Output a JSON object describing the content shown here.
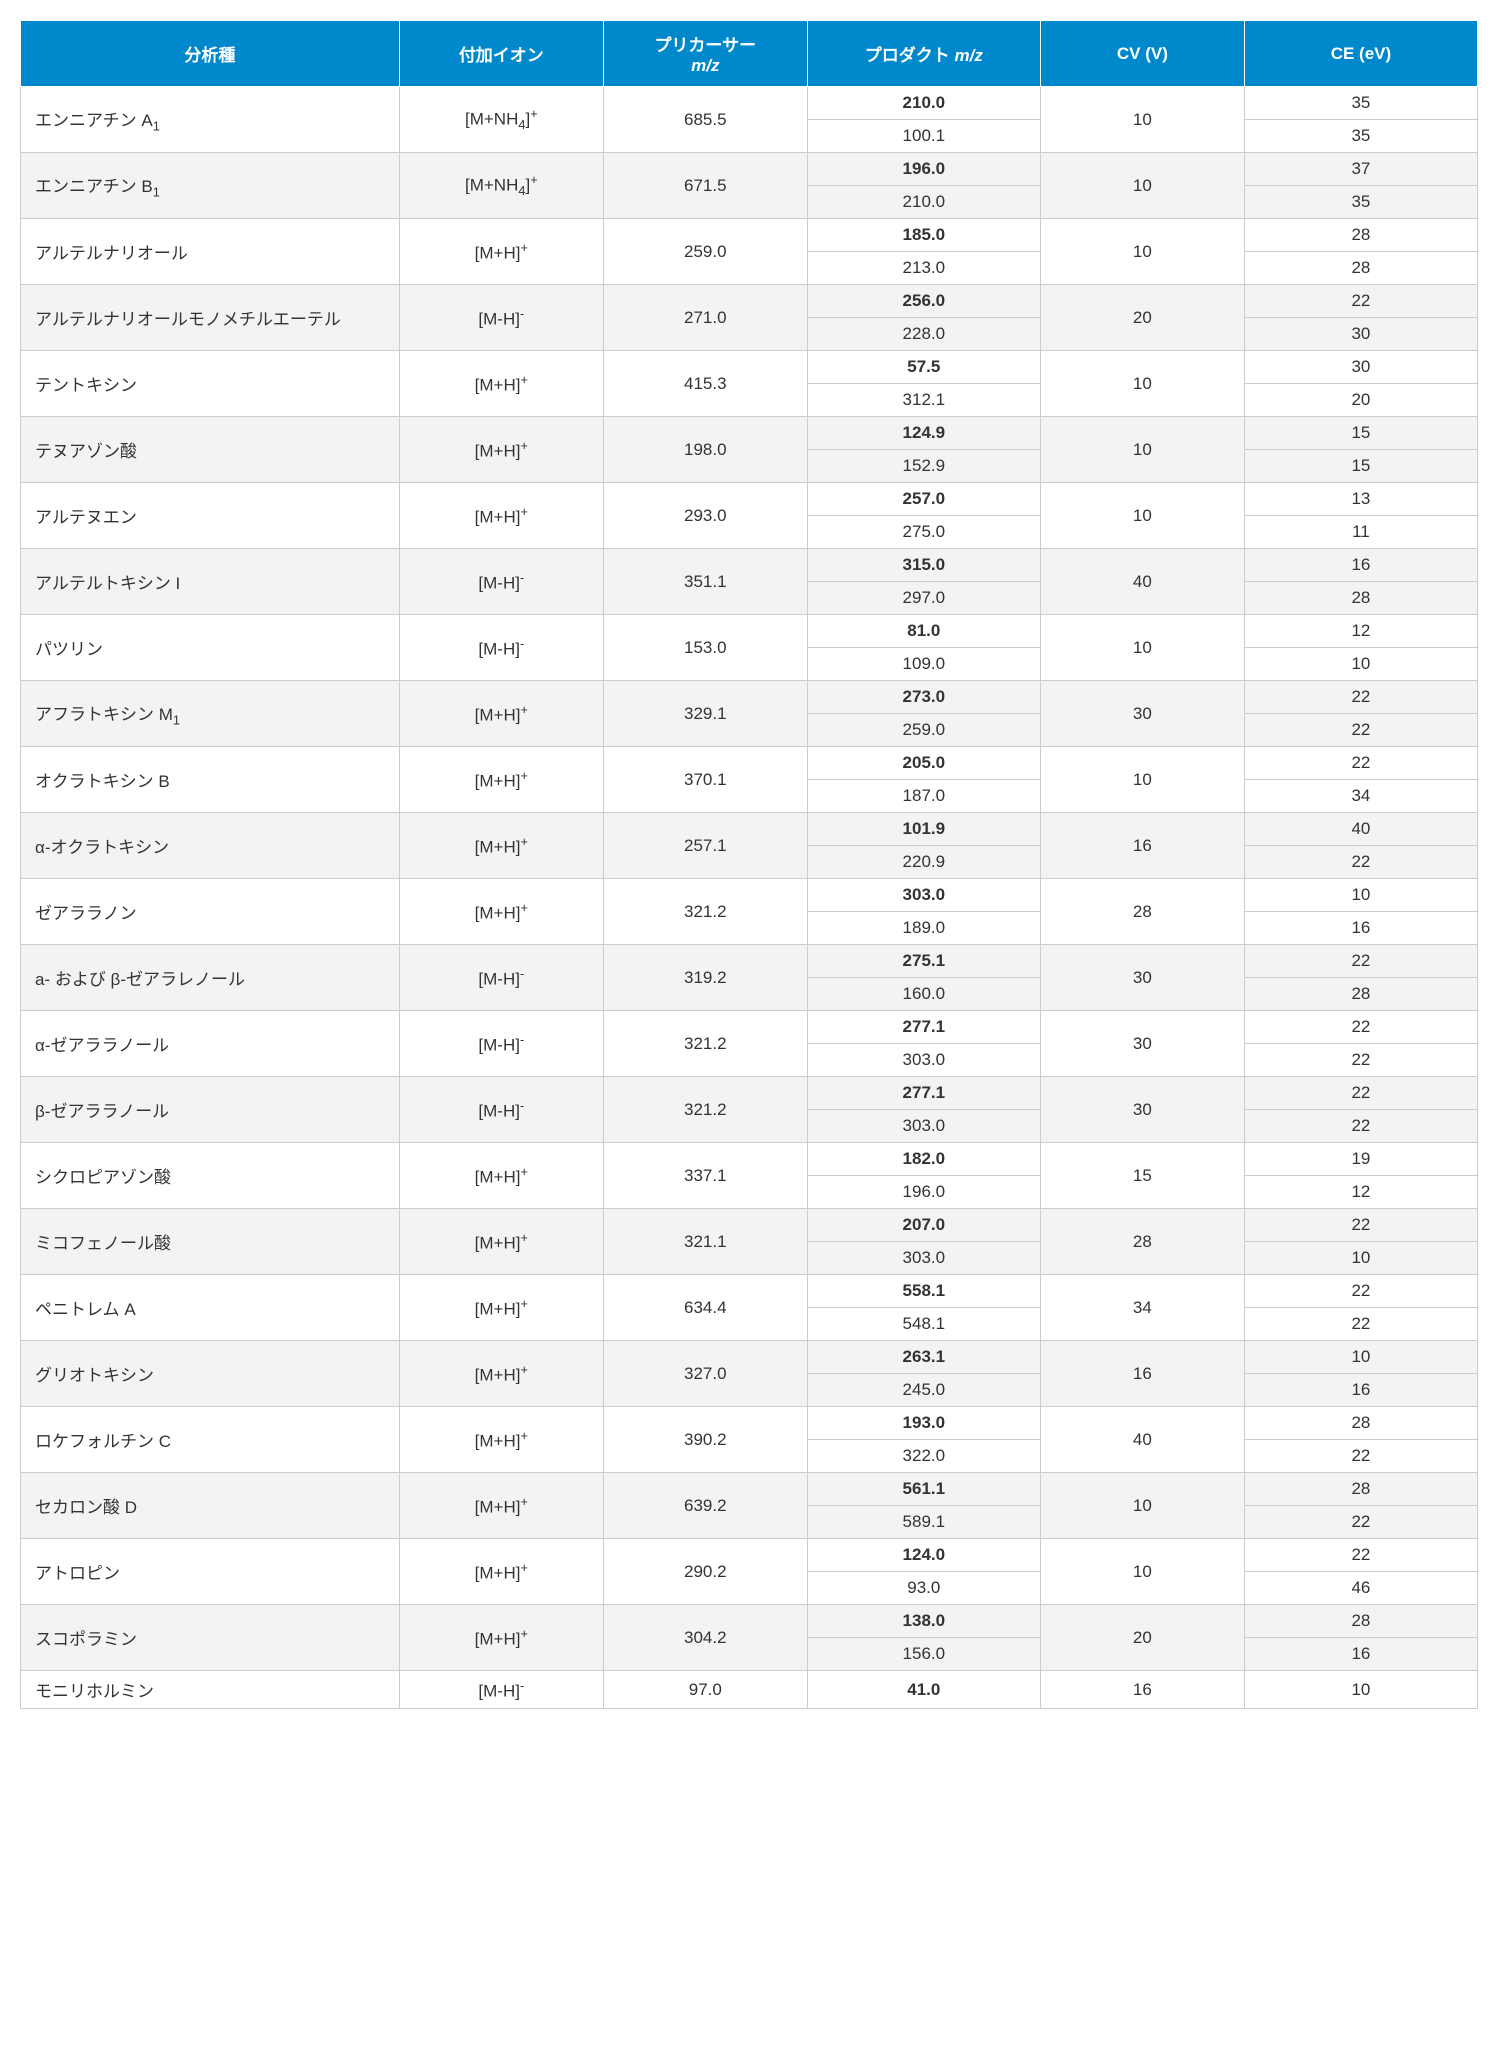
{
  "headers": {
    "analyte": "分析種",
    "adduct": "付加イオン",
    "precursor_pre": "プリカーサー",
    "precursor_mz": "m/z",
    "product_pre": "プロダクト ",
    "product_mz": "m/z",
    "cv": "CV (V)",
    "ce": "CE (eV)"
  },
  "ion_labels": {
    "MNH4": "[M+NH",
    "MNH4_sub": "4",
    "MNH4_tail": "]",
    "MH": "[M+H]",
    "MmH": "[M-H]",
    "plus": "+",
    "minus": "-"
  },
  "rows": [
    {
      "analyte_parts": [
        "エンニアチン A",
        "1",
        ""
      ],
      "adduct": "MNH4",
      "precursor": "685.5",
      "cv": "10",
      "products": [
        {
          "mz": "210.0",
          "bold": true,
          "ce": "35"
        },
        {
          "mz": "100.1",
          "bold": false,
          "ce": "35"
        }
      ],
      "stripe": "odd"
    },
    {
      "analyte_parts": [
        "エンニアチン B",
        "1",
        ""
      ],
      "adduct": "MNH4",
      "precursor": "671.5",
      "cv": "10",
      "products": [
        {
          "mz": "196.0",
          "bold": true,
          "ce": "37"
        },
        {
          "mz": "210.0",
          "bold": false,
          "ce": "35"
        }
      ],
      "stripe": "even"
    },
    {
      "analyte_parts": [
        "アルテルナリオール",
        "",
        ""
      ],
      "adduct": "MH",
      "precursor": "259.0",
      "cv": "10",
      "products": [
        {
          "mz": "185.0",
          "bold": true,
          "ce": "28"
        },
        {
          "mz": "213.0",
          "bold": false,
          "ce": "28"
        }
      ],
      "stripe": "odd"
    },
    {
      "analyte_parts": [
        "アルテルナリオールモノメチルエーテル",
        "",
        ""
      ],
      "adduct": "MmH",
      "precursor": "271.0",
      "cv": "20",
      "products": [
        {
          "mz": "256.0",
          "bold": true,
          "ce": "22"
        },
        {
          "mz": "228.0",
          "bold": false,
          "ce": "30"
        }
      ],
      "stripe": "even"
    },
    {
      "analyte_parts": [
        "テントキシン",
        "",
        ""
      ],
      "adduct": "MH",
      "precursor": "415.3",
      "cv": "10",
      "products": [
        {
          "mz": "57.5",
          "bold": true,
          "ce": "30"
        },
        {
          "mz": "312.1",
          "bold": false,
          "ce": "20"
        }
      ],
      "stripe": "odd"
    },
    {
      "analyte_parts": [
        "テヌアゾン酸",
        "",
        ""
      ],
      "adduct": "MH",
      "precursor": "198.0",
      "cv": "10",
      "products": [
        {
          "mz": "124.9",
          "bold": true,
          "ce": "15"
        },
        {
          "mz": "152.9",
          "bold": false,
          "ce": "15"
        }
      ],
      "stripe": "even"
    },
    {
      "analyte_parts": [
        "アルテヌエン",
        "",
        ""
      ],
      "adduct": "MH",
      "precursor": "293.0",
      "cv": "10",
      "products": [
        {
          "mz": "257.0",
          "bold": true,
          "ce": "13"
        },
        {
          "mz": "275.0",
          "bold": false,
          "ce": "11"
        }
      ],
      "stripe": "odd"
    },
    {
      "analyte_parts": [
        "アルテルトキシン I",
        "",
        ""
      ],
      "adduct": "MmH",
      "precursor": "351.1",
      "cv": "40",
      "products": [
        {
          "mz": "315.0",
          "bold": true,
          "ce": "16"
        },
        {
          "mz": "297.0",
          "bold": false,
          "ce": "28"
        }
      ],
      "stripe": "even"
    },
    {
      "analyte_parts": [
        "パツリン",
        "",
        ""
      ],
      "adduct": "MmH",
      "precursor": "153.0",
      "cv": "10",
      "products": [
        {
          "mz": "81.0",
          "bold": true,
          "ce": "12"
        },
        {
          "mz": "109.0",
          "bold": false,
          "ce": "10"
        }
      ],
      "stripe": "odd"
    },
    {
      "analyte_parts": [
        "アフラトキシン M",
        "1",
        ""
      ],
      "adduct": "MH",
      "precursor": "329.1",
      "cv": "30",
      "products": [
        {
          "mz": "273.0",
          "bold": true,
          "ce": "22"
        },
        {
          "mz": "259.0",
          "bold": false,
          "ce": "22"
        }
      ],
      "stripe": "even"
    },
    {
      "analyte_parts": [
        "オクラトキシン B",
        "",
        ""
      ],
      "adduct": "MH",
      "precursor": "370.1",
      "cv": "10",
      "products": [
        {
          "mz": "205.0",
          "bold": true,
          "ce": "22"
        },
        {
          "mz": "187.0",
          "bold": false,
          "ce": "34"
        }
      ],
      "stripe": "odd"
    },
    {
      "analyte_parts": [
        "α-オクラトキシン",
        "",
        ""
      ],
      "adduct": "MH",
      "precursor": "257.1",
      "cv": "16",
      "products": [
        {
          "mz": "101.9",
          "bold": true,
          "ce": "40"
        },
        {
          "mz": "220.9",
          "bold": false,
          "ce": "22"
        }
      ],
      "stripe": "even"
    },
    {
      "analyte_parts": [
        "ゼアララノン",
        "",
        ""
      ],
      "adduct": "MH",
      "precursor": "321.2",
      "cv": "28",
      "products": [
        {
          "mz": "303.0",
          "bold": true,
          "ce": "10"
        },
        {
          "mz": "189.0",
          "bold": false,
          "ce": "16"
        }
      ],
      "stripe": "odd"
    },
    {
      "analyte_parts": [
        "a- および β-ゼアラレノール",
        "",
        ""
      ],
      "adduct": "MmH",
      "precursor": "319.2",
      "cv": "30",
      "products": [
        {
          "mz": "275.1",
          "bold": true,
          "ce": "22"
        },
        {
          "mz": "160.0",
          "bold": false,
          "ce": "28"
        }
      ],
      "stripe": "even"
    },
    {
      "analyte_parts": [
        "α-ゼアララノール",
        "",
        ""
      ],
      "adduct": "MmH",
      "precursor": "321.2",
      "cv": "30",
      "products": [
        {
          "mz": "277.1",
          "bold": true,
          "ce": "22"
        },
        {
          "mz": "303.0",
          "bold": false,
          "ce": "22"
        }
      ],
      "stripe": "odd"
    },
    {
      "analyte_parts": [
        "β-ゼアララノール",
        "",
        ""
      ],
      "adduct": "MmH",
      "precursor": "321.2",
      "cv": "30",
      "products": [
        {
          "mz": "277.1",
          "bold": true,
          "ce": "22"
        },
        {
          "mz": "303.0",
          "bold": false,
          "ce": "22"
        }
      ],
      "stripe": "even"
    },
    {
      "analyte_parts": [
        "シクロピアゾン酸",
        "",
        ""
      ],
      "adduct": "MH",
      "precursor": "337.1",
      "cv": "15",
      "products": [
        {
          "mz": "182.0",
          "bold": true,
          "ce": "19"
        },
        {
          "mz": "196.0",
          "bold": false,
          "ce": "12"
        }
      ],
      "stripe": "odd"
    },
    {
      "analyte_parts": [
        "ミコフェノール酸",
        "",
        ""
      ],
      "adduct": "MH",
      "precursor": "321.1",
      "cv": "28",
      "products": [
        {
          "mz": "207.0",
          "bold": true,
          "ce": "22"
        },
        {
          "mz": "303.0",
          "bold": false,
          "ce": "10"
        }
      ],
      "stripe": "even"
    },
    {
      "analyte_parts": [
        "ペニトレム A",
        "",
        ""
      ],
      "adduct": "MH",
      "precursor": "634.4",
      "cv": "34",
      "products": [
        {
          "mz": "558.1",
          "bold": true,
          "ce": "22"
        },
        {
          "mz": "548.1",
          "bold": false,
          "ce": "22"
        }
      ],
      "stripe": "odd"
    },
    {
      "analyte_parts": [
        "グリオトキシン",
        "",
        ""
      ],
      "adduct": "MH",
      "precursor": "327.0",
      "cv": "16",
      "products": [
        {
          "mz": "263.1",
          "bold": true,
          "ce": "10"
        },
        {
          "mz": "245.0",
          "bold": false,
          "ce": "16"
        }
      ],
      "stripe": "even"
    },
    {
      "analyte_parts": [
        "ロケフォルチン C",
        "",
        ""
      ],
      "adduct": "MH",
      "precursor": "390.2",
      "cv": "40",
      "products": [
        {
          "mz": "193.0",
          "bold": true,
          "ce": "28"
        },
        {
          "mz": "322.0",
          "bold": false,
          "ce": "22"
        }
      ],
      "stripe": "odd"
    },
    {
      "analyte_parts": [
        "セカロン酸 D",
        "",
        ""
      ],
      "adduct": "MH",
      "precursor": "639.2",
      "cv": "10",
      "products": [
        {
          "mz": "561.1",
          "bold": true,
          "ce": "28"
        },
        {
          "mz": "589.1",
          "bold": false,
          "ce": "22"
        }
      ],
      "stripe": "even"
    },
    {
      "analyte_parts": [
        "アトロピン",
        "",
        ""
      ],
      "adduct": "MH",
      "precursor": "290.2",
      "cv": "10",
      "products": [
        {
          "mz": "124.0",
          "bold": true,
          "ce": "22"
        },
        {
          "mz": "93.0",
          "bold": false,
          "ce": "46"
        }
      ],
      "stripe": "odd"
    },
    {
      "analyte_parts": [
        "スコポラミン",
        "",
        ""
      ],
      "adduct": "MH",
      "precursor": "304.2",
      "cv": "20",
      "products": [
        {
          "mz": "138.0",
          "bold": true,
          "ce": "28"
        },
        {
          "mz": "156.0",
          "bold": false,
          "ce": "16"
        }
      ],
      "stripe": "even"
    },
    {
      "analyte_parts": [
        "モニリホルミン",
        "",
        ""
      ],
      "adduct": "MmH",
      "precursor": "97.0",
      "cv": "16",
      "products": [
        {
          "mz": "41.0",
          "bold": true,
          "ce": "10"
        }
      ],
      "stripe": "odd"
    }
  ]
}
